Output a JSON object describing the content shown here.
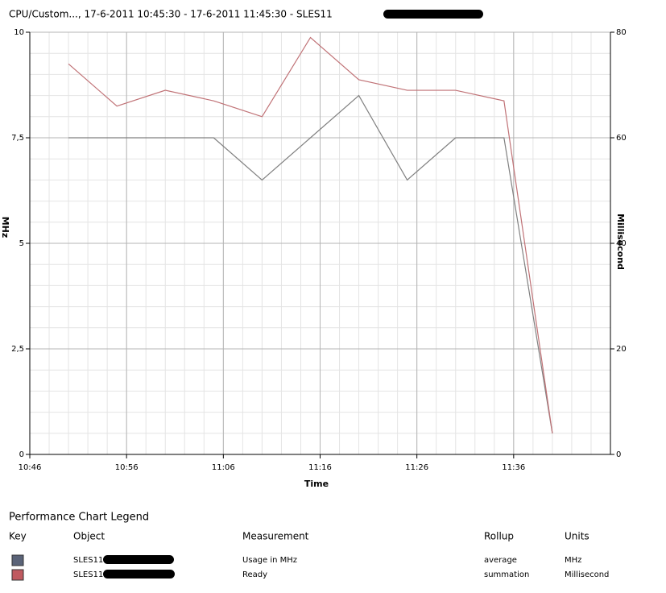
{
  "chart_data": {
    "type": "line",
    "title": "CPU/Custom..., 17-6-2011 10:45:30 - 17-6-2011 11:45:30 - SLES11",
    "x_label": "Time",
    "y_label": "MHz",
    "y2_label": "Millisecond",
    "x": [
      "10:50",
      "10:55",
      "11:00",
      "11:05",
      "11:10",
      "11:15",
      "11:20",
      "11:25",
      "11:30",
      "11:35",
      "11:40"
    ],
    "xlim": [
      "10:46",
      "11:46"
    ],
    "xticks": [
      "10:46",
      "10:56",
      "11:06",
      "11:16",
      "11:26",
      "11:36"
    ],
    "ylim": [
      0,
      10
    ],
    "yticks": [
      0,
      {
        "value": 2.5,
        "label": "2,5"
      },
      5,
      {
        "value": 7.5,
        "label": "7,5"
      },
      10
    ],
    "y2lim": [
      0,
      80
    ],
    "y2ticks": [
      0,
      20,
      40,
      60,
      80
    ],
    "grid": true,
    "series": [
      {
        "name": "Usage in MHz",
        "color": "#808080",
        "values": [
          7.5,
          7.5,
          7.5,
          7.5,
          6.5,
          7.5,
          8.5,
          6.5,
          7.5,
          7.5,
          0.5
        ]
      },
      {
        "name": "Ready",
        "color": "#c07276",
        "axis": "y2",
        "values": [
          74,
          66,
          69,
          67,
          64,
          79,
          71,
          69,
          69,
          67,
          4
        ]
      }
    ]
  },
  "legend_table": {
    "title": "Performance Chart Legend",
    "columns": [
      "Key",
      "Object",
      "Measurement",
      "Rollup",
      "Units"
    ],
    "rows": [
      {
        "key_color": "#5a6378",
        "object": "SLES11",
        "measurement": "Usage in MHz",
        "rollup": "average",
        "units": "MHz"
      },
      {
        "key_color": "#c05a60",
        "object": "SLES11",
        "measurement": "Ready",
        "rollup": "summation",
        "units": "Millisecond"
      }
    ]
  }
}
